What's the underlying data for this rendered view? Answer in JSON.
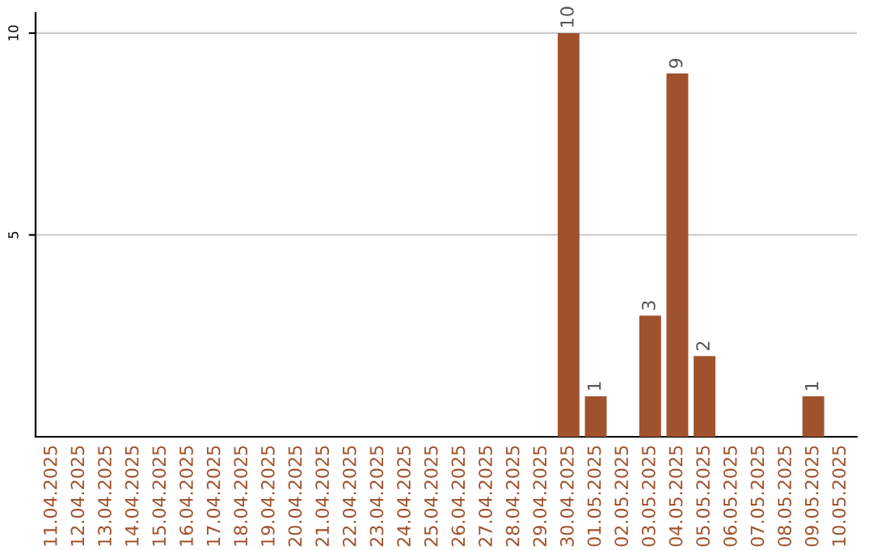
{
  "chart_data": {
    "type": "bar",
    "categories": [
      "11.04.2025",
      "12.04.2025",
      "13.04.2025",
      "14.04.2025",
      "15.04.2025",
      "16.04.2025",
      "17.04.2025",
      "18.04.2025",
      "19.04.2025",
      "20.04.2025",
      "21.04.2025",
      "22.04.2025",
      "23.04.2025",
      "24.04.2025",
      "25.04.2025",
      "26.04.2025",
      "27.04.2025",
      "28.04.2025",
      "29.04.2025",
      "30.04.2025",
      "01.05.2025",
      "02.05.2025",
      "03.05.2025",
      "04.05.2025",
      "05.05.2025",
      "06.05.2025",
      "07.05.2025",
      "08.05.2025",
      "09.05.2025",
      "10.05.2025"
    ],
    "values": [
      0,
      0,
      0,
      0,
      0,
      0,
      0,
      0,
      0,
      0,
      0,
      0,
      0,
      0,
      0,
      0,
      0,
      0,
      0,
      10,
      1,
      0,
      3,
      9,
      2,
      0,
      0,
      0,
      1,
      0
    ],
    "value_labels": [
      null,
      null,
      null,
      null,
      null,
      null,
      null,
      null,
      null,
      null,
      null,
      null,
      null,
      null,
      null,
      null,
      null,
      null,
      null,
      "10",
      "1",
      null,
      "3",
      "9",
      "2",
      null,
      null,
      null,
      "1",
      null
    ],
    "color": "#a0522d",
    "ylim": [
      0,
      10.5
    ],
    "yticks": [
      5,
      10
    ],
    "grid": "y"
  }
}
